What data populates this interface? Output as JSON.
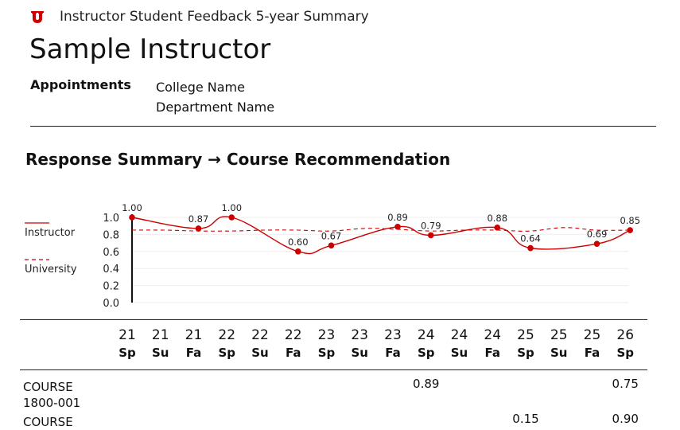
{
  "header": {
    "title": "Instructor Student Feedback 5-year Summary",
    "instructor_name": "Sample Instructor",
    "appointments_label": "Appointments",
    "appointments": [
      "College Name",
      "Department Name"
    ],
    "brand_color": "#cc0000"
  },
  "section_title": "Response Summary → Course Recommendation",
  "chart_data": {
    "type": "line",
    "categories": [
      {
        "year": "21",
        "term": "Sp"
      },
      {
        "year": "21",
        "term": "Su"
      },
      {
        "year": "21",
        "term": "Fa"
      },
      {
        "year": "22",
        "term": "Sp"
      },
      {
        "year": "22",
        "term": "Su"
      },
      {
        "year": "22",
        "term": "Fa"
      },
      {
        "year": "23",
        "term": "Sp"
      },
      {
        "year": "23",
        "term": "Su"
      },
      {
        "year": "23",
        "term": "Fa"
      },
      {
        "year": "24",
        "term": "Sp"
      },
      {
        "year": "24",
        "term": "Su"
      },
      {
        "year": "24",
        "term": "Fa"
      },
      {
        "year": "25",
        "term": "Sp"
      },
      {
        "year": "25",
        "term": "Su"
      },
      {
        "year": "25",
        "term": "Fa"
      },
      {
        "year": "26",
        "term": "Sp"
      }
    ],
    "series": [
      {
        "name": "Instructor",
        "style": "solid",
        "color": "#cc0000",
        "values": [
          1.0,
          null,
          0.87,
          1.0,
          null,
          0.6,
          0.67,
          null,
          0.89,
          0.79,
          null,
          0.88,
          0.64,
          null,
          0.69,
          0.85
        ],
        "labels": [
          "1.00",
          null,
          "0.87",
          "1.00",
          null,
          "0.60",
          "0.67",
          null,
          "0.89",
          "0.79",
          null,
          "0.88",
          "0.64",
          null,
          "0.69",
          "0.85"
        ]
      },
      {
        "name": "University",
        "style": "dashed",
        "color": "#cc0000",
        "values": [
          0.85,
          0.85,
          0.84,
          0.84,
          0.85,
          0.85,
          0.84,
          0.87,
          0.86,
          0.84,
          0.85,
          0.85,
          0.84,
          0.88,
          0.85,
          0.85
        ]
      }
    ],
    "y_ticks": [
      "1.0",
      "0.8",
      "0.6",
      "0.4",
      "0.2",
      "0.0"
    ],
    "ylim": [
      0,
      1.0
    ],
    "grid": true,
    "legend_position": "left"
  },
  "courses": [
    {
      "name_line1": "COURSE",
      "name_line2": "1800-001",
      "values": {
        "9": "0.89",
        "15": "0.75"
      }
    },
    {
      "name_line1": "COURSE",
      "name_line2": "",
      "values": {
        "12": "0.15",
        "15": "0.90"
      }
    }
  ]
}
